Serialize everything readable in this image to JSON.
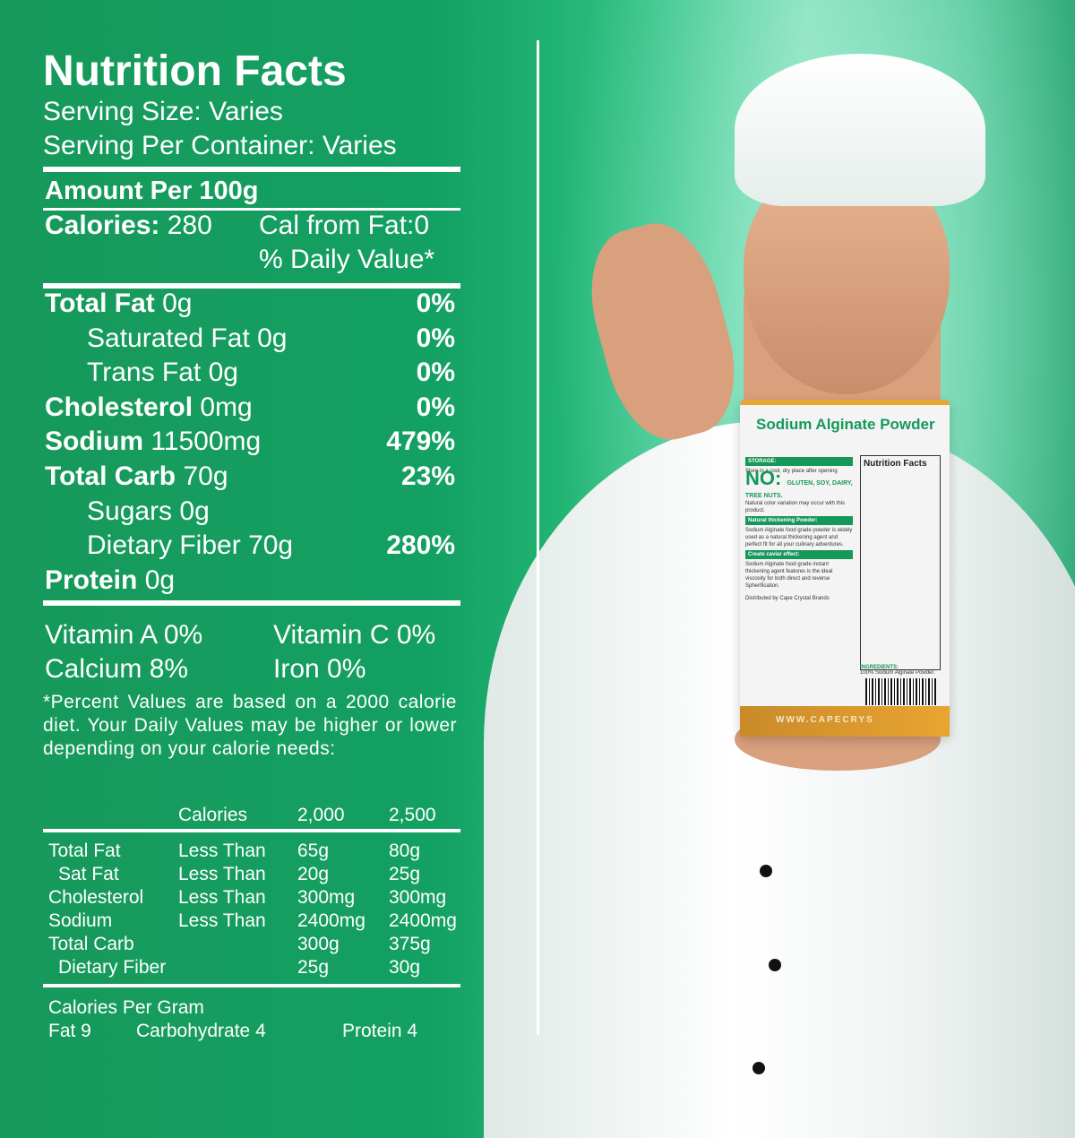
{
  "label": {
    "title": "Nutrition Facts",
    "serving_size": "Serving Size: Varies",
    "servings_per_container": "Serving Per Container: Varies",
    "amount_per": "Amount Per 100g",
    "calories_label": "Calories:",
    "calories_value": "280",
    "cal_from_fat": "Cal from Fat:0",
    "daily_value_header": "% Daily Value*",
    "nutrients": [
      {
        "name": "Total Fat",
        "amount": "0g",
        "dv": "0%",
        "bold": true,
        "indent": false
      },
      {
        "name": "Saturated Fat",
        "amount": "0g",
        "dv": "0%",
        "bold": false,
        "indent": true
      },
      {
        "name": "Trans Fat",
        "amount": "0g",
        "dv": "0%",
        "bold": false,
        "indent": true
      },
      {
        "name": "Cholesterol",
        "amount": "0mg",
        "dv": "0%",
        "bold": true,
        "indent": false
      },
      {
        "name": "Sodium",
        "amount": "11500mg",
        "dv": "479%",
        "bold": true,
        "indent": false
      },
      {
        "name": "Total Carb",
        "amount": "70g",
        "dv": "23%",
        "bold": true,
        "indent": false
      },
      {
        "name": "Sugars",
        "amount": "0g",
        "dv": "",
        "bold": false,
        "indent": true
      },
      {
        "name": "Dietary Fiber",
        "amount": "70g",
        "dv": "280%",
        "bold": false,
        "indent": true
      },
      {
        "name": "Protein",
        "amount": "0g",
        "dv": "",
        "bold": true,
        "indent": false
      }
    ],
    "vitamins": [
      [
        "Vitamin A 0%",
        "Vitamin C 0%"
      ],
      [
        "Calcium 8%",
        "Iron 0%"
      ]
    ],
    "footnote": "*Percent Values are based on a 2000 calorie diet. Your Daily Values may be higher or lower depending on your calorie needs:",
    "reference_table": {
      "headers": [
        "",
        "Calories",
        "2,000",
        "2,500"
      ],
      "rows": [
        [
          "Total Fat",
          "Less Than",
          "65g",
          "80g"
        ],
        [
          " Sat Fat",
          "Less Than",
          "20g",
          "25g"
        ],
        [
          "Cholesterol",
          "Less Than",
          "300mg",
          "300mg"
        ],
        [
          "Sodium",
          "Less Than",
          "2400mg",
          "2400mg"
        ],
        [
          "Total Carb",
          "",
          "300g",
          "375g"
        ],
        [
          " Dietary Fiber",
          "",
          "25g",
          "30g"
        ]
      ]
    },
    "calories_per_gram": "Calories Per Gram",
    "cpg_fat": "Fat 9",
    "cpg_carb": "Carbohydrate 4",
    "cpg_protein": "Protein 4"
  },
  "package": {
    "title": "Sodium Alginate Powder",
    "storage_head": "STORAGE:",
    "storage_text": "Store in a cool, dry place after opening",
    "no_label": "NO:",
    "no_text": "GLUTEN, SOY, DAIRY, TREE NUTS.",
    "color_note": "Natural color variation may occur with this product.",
    "thick_head": "Natural thickening Powder:",
    "thick_text": "Sodium Alginate food grade powder is widely used as a natural thickening agent and perfect fit for all your culinary adventures.",
    "caviar_head": "Create caviar effect:",
    "caviar_text": "Sodium Alginate food grade instant thickening agent features is the ideal viscosity for both direct and reverse Spherification.",
    "distributor": "Distributed by Cape Crystal Brands",
    "nf_title": "Nutrition Facts",
    "ingredients_head": "INGREDIENTS:",
    "ingredients_text": "100% Sodium Alginate Powder.",
    "website": "WWW.CAPECRYS"
  },
  "colors": {
    "brand_green": "#17985b",
    "accent_orange": "#e9a531"
  }
}
